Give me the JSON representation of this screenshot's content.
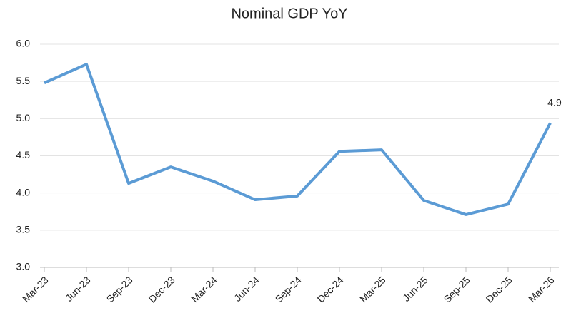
{
  "chart_data": {
    "type": "line",
    "title": "Nominal GDP YoY",
    "categories": [
      "Mar-23",
      "Jun-23",
      "Sep-23",
      "Dec-23",
      "Mar-24",
      "Jun-24",
      "Sep-24",
      "Dec-24",
      "Mar-25",
      "Jun-25",
      "Sep-25",
      "Dec-25",
      "Mar-26"
    ],
    "values": [
      5.48,
      5.73,
      4.13,
      4.35,
      4.16,
      3.91,
      3.96,
      4.56,
      4.58,
      3.9,
      3.71,
      3.85,
      4.94
    ],
    "value_labels": [
      null,
      null,
      null,
      null,
      null,
      null,
      null,
      null,
      null,
      null,
      null,
      null,
      "4.9"
    ],
    "color": "#5b9bd5",
    "ylim": [
      3,
      6
    ],
    "yticks": [
      {
        "value": 3,
        "label": "3.0"
      },
      3.5,
      {
        "value": 4,
        "label": "4.0"
      },
      4.5,
      {
        "value": 5,
        "label": "5.0"
      },
      5.5,
      {
        "value": 6,
        "label": "6.0"
      }
    ],
    "grid": true
  }
}
